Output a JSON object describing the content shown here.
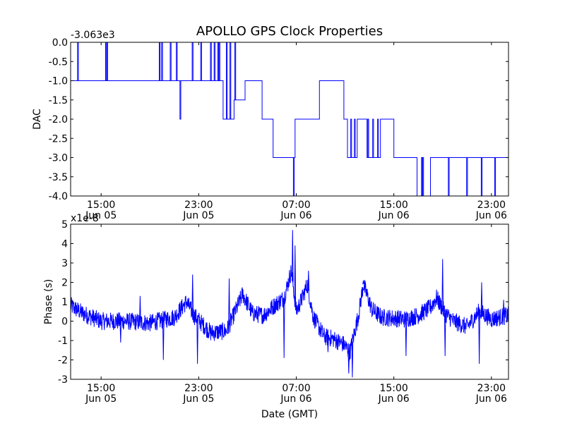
{
  "figure_title": "APOLLO GPS Clock Properties",
  "chart_data": [
    {
      "type": "line",
      "ylabel": "DAC",
      "xlabel": "",
      "offset_label": "-3.063e3",
      "ylim": [
        -4.0,
        0.0
      ],
      "xlim_hours": [
        12.5,
        48.4
      ],
      "yticks": [
        {
          "value": 0.0,
          "label": "0.0"
        },
        {
          "value": -0.5,
          "label": "-0.5"
        },
        {
          "value": -1.0,
          "label": "-1.0"
        },
        {
          "value": -1.5,
          "label": "-1.5"
        },
        {
          "value": -2.0,
          "label": "-2.0"
        },
        {
          "value": -2.5,
          "label": "-2.5"
        },
        {
          "value": -3.0,
          "label": "-3.0"
        },
        {
          "value": -3.5,
          "label": "-3.5"
        },
        {
          "value": -4.0,
          "label": "-4.0"
        }
      ],
      "xticks": [
        {
          "hour": 15,
          "time": "15:00",
          "date": "Jun 05"
        },
        {
          "hour": 23,
          "time": "23:00",
          "date": "Jun 05"
        },
        {
          "hour": 31,
          "time": "07:00",
          "date": "Jun 06"
        },
        {
          "hour": 39,
          "time": "15:00",
          "date": "Jun 06"
        },
        {
          "hour": 47,
          "time": "23:00",
          "date": "Jun 06"
        }
      ],
      "color": "#0000ff",
      "levels": [
        [
          12.5,
          -1
        ],
        [
          15.9,
          -1
        ],
        [
          16.9,
          -1
        ],
        [
          19.8,
          -1
        ],
        [
          23.8,
          -1
        ],
        [
          25.0,
          -2
        ],
        [
          25.9,
          -1.5
        ],
        [
          26.8,
          -1
        ],
        [
          28.0,
          -1
        ],
        [
          28.2,
          -2
        ],
        [
          29.0,
          -2
        ],
        [
          29.1,
          -3
        ],
        [
          30.9,
          -2
        ],
        [
          31.9,
          -2
        ],
        [
          32.9,
          -1
        ],
        [
          34.9,
          -2
        ],
        [
          35.2,
          -3
        ],
        [
          36.0,
          -2
        ],
        [
          36.8,
          -3
        ],
        [
          37.9,
          -2
        ],
        [
          38.9,
          -2
        ],
        [
          39.0,
          -3
        ],
        [
          40.9,
          -4
        ],
        [
          42.0,
          -3
        ],
        [
          44.0,
          -3
        ],
        [
          48.4,
          -4
        ]
      ],
      "spikes": [
        [
          13.1,
          0
        ],
        [
          15.4,
          0
        ],
        [
          15.5,
          0
        ],
        [
          19.8,
          0
        ],
        [
          20.0,
          0
        ],
        [
          20.7,
          0
        ],
        [
          21.2,
          0
        ],
        [
          21.5,
          -2
        ],
        [
          22.5,
          0
        ],
        [
          23.2,
          0
        ],
        [
          24.0,
          0
        ],
        [
          24.3,
          0
        ],
        [
          24.6,
          0
        ],
        [
          24.7,
          0
        ],
        [
          25.3,
          0
        ],
        [
          25.6,
          0
        ],
        [
          26.0,
          0
        ],
        [
          26.9,
          -1
        ],
        [
          27.4,
          -1
        ],
        [
          27.6,
          -1
        ],
        [
          30.8,
          -4
        ],
        [
          33.2,
          -1
        ],
        [
          33.5,
          -1
        ],
        [
          33.7,
          -1
        ],
        [
          35.0,
          -2
        ],
        [
          35.5,
          -2
        ],
        [
          35.8,
          -2
        ],
        [
          36.5,
          -2
        ],
        [
          36.9,
          -2
        ],
        [
          37.3,
          -2
        ],
        [
          37.7,
          -2
        ],
        [
          38.5,
          -2
        ],
        [
          38.7,
          -2
        ],
        [
          41.3,
          -3
        ],
        [
          41.4,
          -3
        ],
        [
          41.9,
          -4
        ],
        [
          42.5,
          -3
        ],
        [
          42.9,
          -3
        ],
        [
          43.2,
          -3
        ],
        [
          43.5,
          -4
        ],
        [
          44.3,
          -3
        ],
        [
          44.6,
          -3
        ],
        [
          45.0,
          -4
        ],
        [
          45.4,
          -3
        ],
        [
          45.8,
          -3
        ],
        [
          46.2,
          -4
        ],
        [
          46.5,
          -3
        ],
        [
          46.9,
          -3
        ],
        [
          47.3,
          -4
        ],
        [
          47.7,
          -3
        ]
      ],
      "x_range_hours": [
        12.5,
        48.4
      ]
    },
    {
      "type": "line",
      "ylabel": "Phase (s)",
      "xlabel": "Date (GMT)",
      "offset_label": "x1e-8",
      "ylim": [
        -3,
        5
      ],
      "xlim_hours": [
        12.5,
        48.4
      ],
      "yticks": [
        {
          "value": -3,
          "label": "-3"
        },
        {
          "value": -2,
          "label": "-2"
        },
        {
          "value": -1,
          "label": "-1"
        },
        {
          "value": 0,
          "label": "0"
        },
        {
          "value": 1,
          "label": "1"
        },
        {
          "value": 2,
          "label": "2"
        },
        {
          "value": 3,
          "label": "3"
        },
        {
          "value": 4,
          "label": "4"
        },
        {
          "value": 5,
          "label": "5"
        }
      ],
      "xticks": [
        {
          "hour": 15,
          "time": "15:00",
          "date": "Jun 05"
        },
        {
          "hour": 23,
          "time": "23:00",
          "date": "Jun 05"
        },
        {
          "hour": 31,
          "time": "07:00",
          "date": "Jun 06"
        },
        {
          "hour": 39,
          "time": "15:00",
          "date": "Jun 06"
        },
        {
          "hour": 47,
          "time": "23:00",
          "date": "Jun 06"
        }
      ],
      "color": "#0000ff",
      "trend": [
        [
          12.5,
          0.8
        ],
        [
          13.5,
          0.4
        ],
        [
          15.0,
          0.0
        ],
        [
          17.0,
          0.0
        ],
        [
          19.0,
          -0.1
        ],
        [
          21.0,
          0.2
        ],
        [
          22.0,
          1.0
        ],
        [
          22.6,
          0.3
        ],
        [
          24.0,
          -0.6
        ],
        [
          25.3,
          -0.5
        ],
        [
          26.0,
          0.5
        ],
        [
          26.6,
          1.4
        ],
        [
          27.4,
          0.4
        ],
        [
          28.3,
          0.3
        ],
        [
          29.2,
          0.8
        ],
        [
          30.0,
          1.2
        ],
        [
          30.6,
          2.6
        ],
        [
          31.0,
          0.5
        ],
        [
          31.5,
          1.2
        ],
        [
          31.9,
          1.9
        ],
        [
          32.4,
          0.2
        ],
        [
          33.3,
          -0.8
        ],
        [
          34.0,
          -0.9
        ],
        [
          34.9,
          -1.2
        ],
        [
          35.4,
          -1.6
        ],
        [
          36.1,
          0.3
        ],
        [
          36.5,
          1.9
        ],
        [
          37.2,
          0.6
        ],
        [
          38.0,
          0.2
        ],
        [
          40.0,
          0.1
        ],
        [
          41.0,
          0.3
        ],
        [
          42.0,
          0.7
        ],
        [
          42.5,
          1.2
        ],
        [
          43.2,
          0.4
        ],
        [
          43.9,
          0.0
        ],
        [
          45.0,
          -0.3
        ],
        [
          46.0,
          0.5
        ],
        [
          47.0,
          0.1
        ],
        [
          48.4,
          0.3
        ]
      ],
      "peaks": [
        [
          16.6,
          -1.1
        ],
        [
          18.2,
          1.3
        ],
        [
          20.1,
          -2.0
        ],
        [
          22.5,
          2.4
        ],
        [
          22.9,
          -2.2
        ],
        [
          25.5,
          2.2
        ],
        [
          30.0,
          -1.9
        ],
        [
          30.7,
          4.7
        ],
        [
          30.9,
          3.9
        ],
        [
          32.0,
          2.6
        ],
        [
          33.6,
          -1.6
        ],
        [
          35.3,
          -2.7
        ],
        [
          35.6,
          -2.9
        ],
        [
          36.5,
          2.1
        ],
        [
          40.0,
          -1.8
        ],
        [
          43.0,
          3.2
        ],
        [
          43.2,
          -1.8
        ],
        [
          46.0,
          -2.2
        ],
        [
          46.2,
          2.0
        ],
        [
          48.0,
          1.1
        ]
      ],
      "noise_amp": 0.45
    }
  ]
}
